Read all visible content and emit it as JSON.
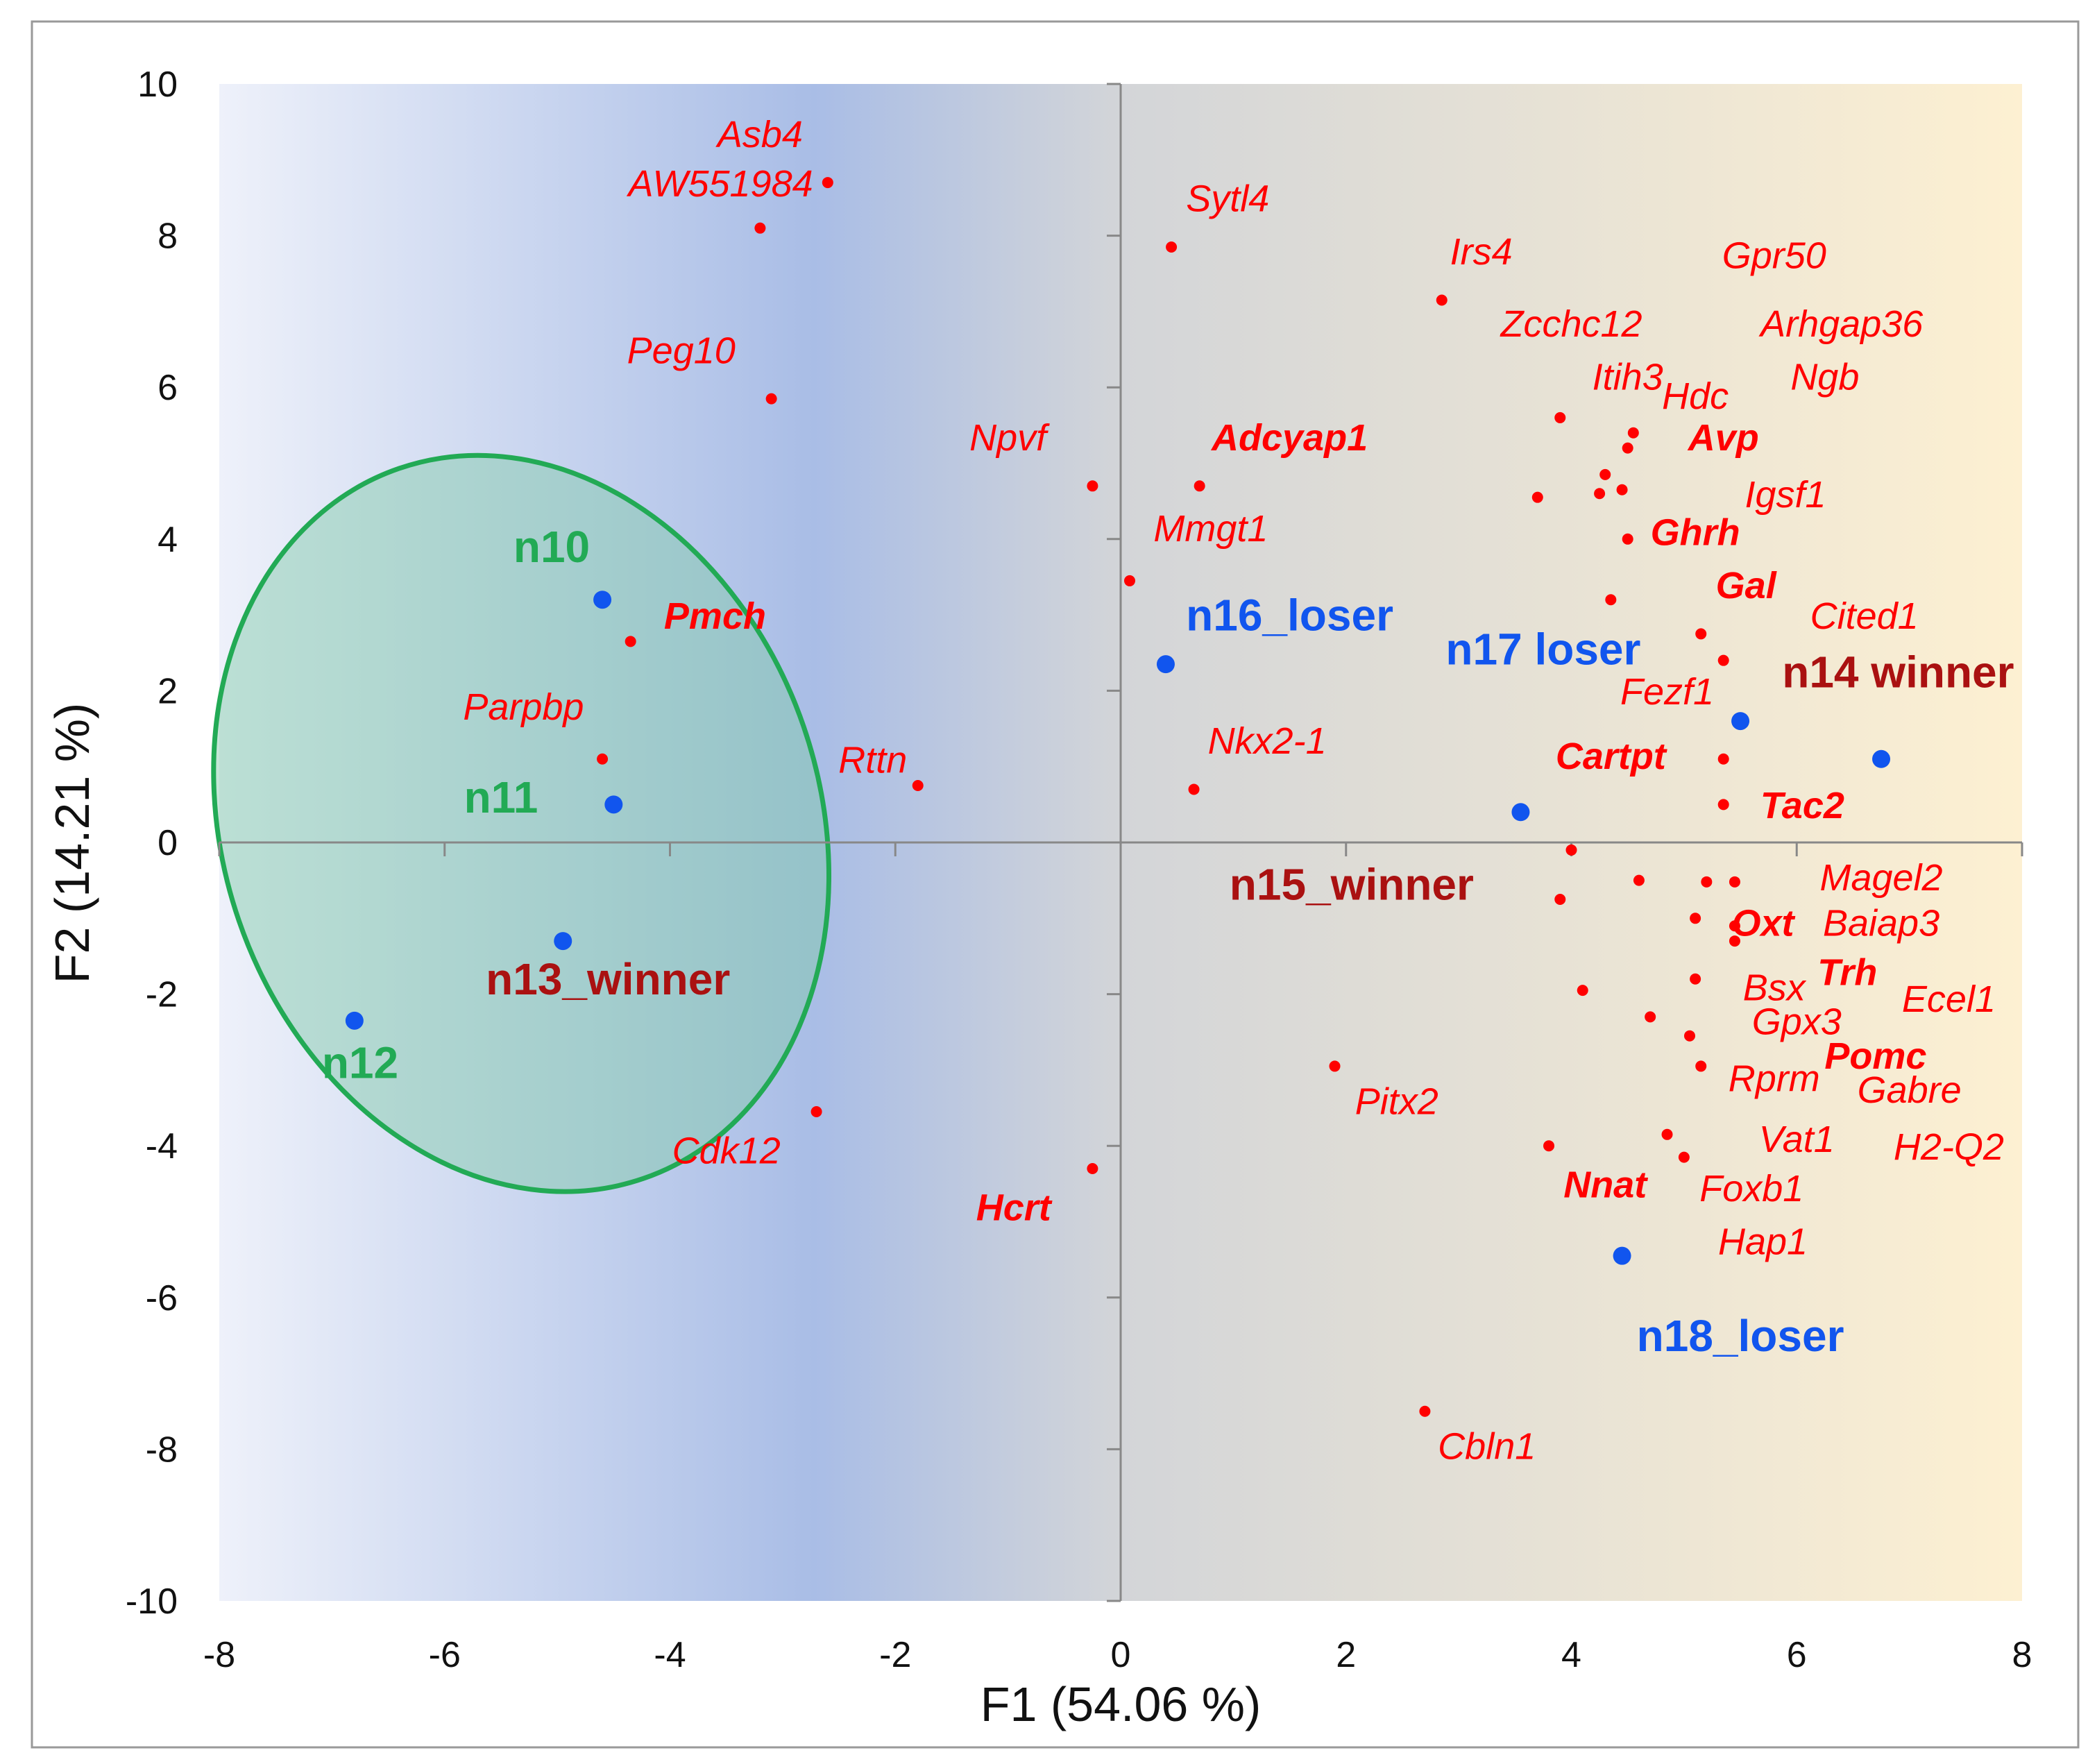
{
  "chart_data": {
    "type": "scatter",
    "title": "",
    "xlabel": "F1 (54.06 %)",
    "ylabel": "F2 (14.21 %)",
    "xlim": [
      -8,
      8
    ],
    "ylim": [
      -10,
      10
    ],
    "xticks": [
      -8,
      -6,
      -4,
      -2,
      0,
      2,
      4,
      6,
      8
    ],
    "yticks": [
      10,
      8,
      6,
      4,
      2,
      0,
      -2,
      -4,
      -6,
      -8,
      -10
    ],
    "colors": {
      "gene": "#ff0000",
      "sample_point": "#1155ee",
      "winner": "#aa1111",
      "loser": "#1155ee",
      "cluster": "#22aa55",
      "ellipse_stroke": "#22aa55",
      "ellipse_fill": "#7fc9a6",
      "bg_left": "#eef1fa",
      "bg_mid": "#a9bde6",
      "bg_right": "#fdf0d2"
    },
    "cluster_ellipse": {
      "cx": -5.32,
      "cy": 0.25,
      "rx": 2.65,
      "ry": 4.95,
      "rotation_deg": -19
    },
    "series": [
      {
        "name": "genes",
        "points": [
          {
            "x": -2.6,
            "y": 8.7
          },
          {
            "x": -3.2,
            "y": 8.1
          },
          {
            "x": -3.1,
            "y": 5.85
          },
          {
            "x": 0.45,
            "y": 7.85
          },
          {
            "x": 2.85,
            "y": 7.15
          },
          {
            "x": -0.25,
            "y": 4.7
          },
          {
            "x": 0.7,
            "y": 4.7
          },
          {
            "x": 0.08,
            "y": 3.45
          },
          {
            "x": -4.35,
            "y": 2.65
          },
          {
            "x": -4.6,
            "y": 1.1
          },
          {
            "x": -1.8,
            "y": 0.75
          },
          {
            "x": 0.65,
            "y": 0.7
          },
          {
            "x": 3.9,
            "y": 5.6
          },
          {
            "x": 4.55,
            "y": 5.4
          },
          {
            "x": 4.5,
            "y": 5.2
          },
          {
            "x": 4.3,
            "y": 4.85
          },
          {
            "x": 4.45,
            "y": 4.65
          },
          {
            "x": 4.25,
            "y": 4.6
          },
          {
            "x": 3.7,
            "y": 4.55
          },
          {
            "x": 4.5,
            "y": 4.0
          },
          {
            "x": 4.35,
            "y": 3.2
          },
          {
            "x": 5.15,
            "y": 2.75
          },
          {
            "x": 5.35,
            "y": 2.4
          },
          {
            "x": 5.35,
            "y": 1.1
          },
          {
            "x": 5.35,
            "y": 0.5
          },
          {
            "x": 4.0,
            "y": -0.1
          },
          {
            "x": 4.6,
            "y": -0.5
          },
          {
            "x": 5.2,
            "y": -0.52
          },
          {
            "x": 5.45,
            "y": -0.52
          },
          {
            "x": 3.9,
            "y": -0.75
          },
          {
            "x": 5.1,
            "y": -1.0
          },
          {
            "x": 5.45,
            "y": -1.1
          },
          {
            "x": 5.45,
            "y": -1.3
          },
          {
            "x": 4.1,
            "y": -1.95
          },
          {
            "x": 5.1,
            "y": -1.8
          },
          {
            "x": 4.7,
            "y": -2.3
          },
          {
            "x": 5.05,
            "y": -2.55
          },
          {
            "x": 5.15,
            "y": -2.95
          },
          {
            "x": 1.9,
            "y": -2.95
          },
          {
            "x": -2.7,
            "y": -3.55
          },
          {
            "x": -0.25,
            "y": -4.3
          },
          {
            "x": 3.8,
            "y": -4.0
          },
          {
            "x": 4.85,
            "y": -3.85
          },
          {
            "x": 5.0,
            "y": -4.15
          },
          {
            "x": 2.7,
            "y": -7.5
          }
        ]
      },
      {
        "name": "samples",
        "points": [
          {
            "x": -4.6,
            "y": 3.2
          },
          {
            "x": -4.5,
            "y": 0.5
          },
          {
            "x": -4.95,
            "y": -1.3
          },
          {
            "x": -6.8,
            "y": -2.35
          },
          {
            "x": 0.4,
            "y": 2.35
          },
          {
            "x": 5.5,
            "y": 1.6
          },
          {
            "x": 6.75,
            "y": 1.1
          },
          {
            "x": 3.55,
            "y": 0.4
          },
          {
            "x": 4.45,
            "y": -5.45
          }
        ]
      }
    ],
    "gene_labels": [
      {
        "text": "Asb4",
        "x": -3.2,
        "y": 9.3,
        "bold": false
      },
      {
        "text": "AW551984",
        "x": -3.55,
        "y": 8.65,
        "bold": false
      },
      {
        "text": "Sytl4",
        "x": 0.95,
        "y": 8.45,
        "bold": false
      },
      {
        "text": "Irs4",
        "x": 3.2,
        "y": 7.75,
        "bold": false
      },
      {
        "text": "Gpr50",
        "x": 5.8,
        "y": 7.7,
        "bold": false
      },
      {
        "text": "Zcchc12",
        "x": 4.0,
        "y": 6.8,
        "bold": false
      },
      {
        "text": "Arhgap36",
        "x": 6.4,
        "y": 6.8,
        "bold": false
      },
      {
        "text": "Peg10",
        "x": -3.9,
        "y": 6.45,
        "bold": false
      },
      {
        "text": "Itih3",
        "x": 4.5,
        "y": 6.1,
        "bold": false
      },
      {
        "text": "Ngb",
        "x": 6.25,
        "y": 6.1,
        "bold": false
      },
      {
        "text": "Hdc",
        "x": 5.1,
        "y": 5.85,
        "bold": false
      },
      {
        "text": "Npvf",
        "x": -1.0,
        "y": 5.3,
        "bold": false
      },
      {
        "text": "Adcyap1",
        "x": 1.5,
        "y": 5.3,
        "bold": true
      },
      {
        "text": "Avp",
        "x": 5.35,
        "y": 5.3,
        "bold": true
      },
      {
        "text": "Igsf1",
        "x": 5.9,
        "y": 4.55,
        "bold": false
      },
      {
        "text": "Mmgt1",
        "x": 0.8,
        "y": 4.1,
        "bold": false
      },
      {
        "text": "Ghrh",
        "x": 5.1,
        "y": 4.05,
        "bold": true
      },
      {
        "text": "Gal",
        "x": 5.55,
        "y": 3.35,
        "bold": true
      },
      {
        "text": "Pmch",
        "x": -3.6,
        "y": 2.95,
        "bold": true
      },
      {
        "text": "Cited1",
        "x": 6.6,
        "y": 2.95,
        "bold": false
      },
      {
        "text": "Fezf1",
        "x": 4.85,
        "y": 1.95,
        "bold": false
      },
      {
        "text": "Parpbp",
        "x": -5.3,
        "y": 1.75,
        "bold": false
      },
      {
        "text": "Nkx2-1",
        "x": 1.3,
        "y": 1.3,
        "bold": false
      },
      {
        "text": "Rttn",
        "x": -2.2,
        "y": 1.05,
        "bold": false
      },
      {
        "text": "Cartpt",
        "x": 4.35,
        "y": 1.1,
        "bold": true
      },
      {
        "text": "Tac2",
        "x": 6.05,
        "y": 0.45,
        "bold": true
      },
      {
        "text": "Magel2",
        "x": 6.75,
        "y": -0.5,
        "bold": false
      },
      {
        "text": "Oxt",
        "x": 5.7,
        "y": -1.1,
        "bold": true
      },
      {
        "text": "Baiap3",
        "x": 6.75,
        "y": -1.1,
        "bold": false
      },
      {
        "text": "Trh",
        "x": 6.45,
        "y": -1.75,
        "bold": true
      },
      {
        "text": "Bsx",
        "x": 5.8,
        "y": -1.95,
        "bold": false
      },
      {
        "text": "Ecel1",
        "x": 7.35,
        "y": -2.1,
        "bold": false
      },
      {
        "text": "Gpx3",
        "x": 6.0,
        "y": -2.4,
        "bold": false
      },
      {
        "text": "Pomc",
        "x": 6.7,
        "y": -2.85,
        "bold": true
      },
      {
        "text": "Rprm",
        "x": 5.8,
        "y": -3.15,
        "bold": false
      },
      {
        "text": "Gabre",
        "x": 7.0,
        "y": -3.3,
        "bold": false
      },
      {
        "text": "Pitx2",
        "x": 2.45,
        "y": -3.45,
        "bold": false
      },
      {
        "text": "Cdk12",
        "x": -3.5,
        "y": -4.1,
        "bold": false
      },
      {
        "text": "Vat1",
        "x": 6.0,
        "y": -3.95,
        "bold": false
      },
      {
        "text": "H2-Q2",
        "x": 7.35,
        "y": -4.05,
        "bold": false
      },
      {
        "text": "Nnat",
        "x": 4.3,
        "y": -4.55,
        "bold": true
      },
      {
        "text": "Foxb1",
        "x": 5.6,
        "y": -4.6,
        "bold": false
      },
      {
        "text": "Hcrt",
        "x": -0.95,
        "y": -4.85,
        "bold": true
      },
      {
        "text": "Hap1",
        "x": 5.7,
        "y": -5.3,
        "bold": false
      },
      {
        "text": "Cbln1",
        "x": 3.25,
        "y": -8.0,
        "bold": false
      }
    ],
    "sample_labels": [
      {
        "text": "n10",
        "x": -5.05,
        "y": 3.85,
        "group": "cluster"
      },
      {
        "text": "n11",
        "x": -5.5,
        "y": 0.55,
        "group": "cluster"
      },
      {
        "text": "n12",
        "x": -6.75,
        "y": -2.95,
        "group": "cluster"
      },
      {
        "text": "n13_winner",
        "x": -4.55,
        "y": -1.85,
        "group": "winner"
      },
      {
        "text": "n14 winner",
        "x": 6.9,
        "y": 2.2,
        "group": "winner"
      },
      {
        "text": "n15_winner",
        "x": 2.05,
        "y": -0.6,
        "group": "winner"
      },
      {
        "text": "n16_loser",
        "x": 1.5,
        "y": 2.95,
        "group": "loser"
      },
      {
        "text": "n17 loser",
        "x": 3.75,
        "y": 2.5,
        "group": "loser"
      },
      {
        "text": "n18_loser",
        "x": 5.5,
        "y": -6.55,
        "group": "loser"
      }
    ]
  }
}
